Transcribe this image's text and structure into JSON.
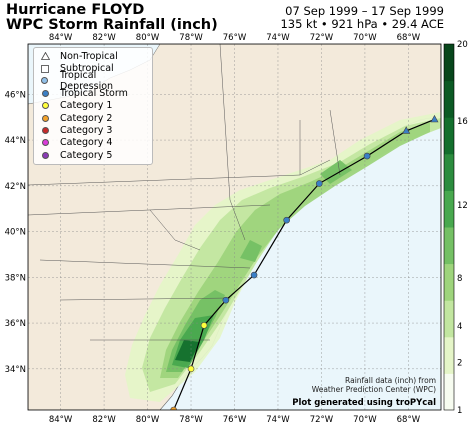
{
  "title": {
    "line1": "Hurricane FLOYD",
    "line2": "WPC Storm Rainfall (inch)"
  },
  "dates": {
    "range": "07 Sep 1999 – 17 Sep 1999",
    "stats": "135 kt • 921 hPa • 29.4 ACE"
  },
  "legend": [
    {
      "label": "Non-Tropical",
      "symbol": "triangle",
      "color": "#ffffff"
    },
    {
      "label": "Subtropical",
      "symbol": "square",
      "color": "#ffffff"
    },
    {
      "label": "Tropical Depression",
      "symbol": "circle",
      "color": "#8fbfe8"
    },
    {
      "label": "Tropical Storm",
      "symbol": "circle",
      "color": "#3a7fc6"
    },
    {
      "label": "Category 1",
      "symbol": "circle",
      "color": "#ffff3c"
    },
    {
      "label": "Category 2",
      "symbol": "circle",
      "color": "#f3a22a"
    },
    {
      "label": "Category 3",
      "symbol": "circle",
      "color": "#c62a2a"
    },
    {
      "label": "Category 4",
      "symbol": "circle",
      "color": "#d93bd9"
    },
    {
      "label": "Category 5",
      "symbol": "circle",
      "color": "#8a3bb5"
    }
  ],
  "axes": {
    "lon_ticks": [
      "84°W",
      "82°W",
      "80°W",
      "78°W",
      "76°W",
      "74°W",
      "72°W",
      "70°W",
      "68°W"
    ],
    "lat_ticks": [
      "46°N",
      "44°N",
      "42°N",
      "40°N",
      "38°N",
      "36°N",
      "34°N"
    ],
    "lon_range": [
      -85.5,
      -66.5
    ],
    "lat_range": [
      32.2,
      48.2
    ]
  },
  "colorbar": {
    "ticks": [
      "1",
      "2",
      "4",
      "8",
      "12",
      "16",
      "20"
    ],
    "colors": [
      "#f7fcf0",
      "#e5f5c8",
      "#c2e6a0",
      "#9ed47c",
      "#74c064",
      "#48a84e",
      "#2b8c3e",
      "#136f2d",
      "#0b5a24",
      "#07461b"
    ]
  },
  "track": [
    {
      "lon": -78.8,
      "lat": 32.2,
      "cat": "Category 2"
    },
    {
      "lon": -78.0,
      "lat": 34.0,
      "cat": "Category 1"
    },
    {
      "lon": -77.4,
      "lat": 35.9,
      "cat": "Category 1"
    },
    {
      "lon": -76.4,
      "lat": 37.0,
      "cat": "Tropical Storm"
    },
    {
      "lon": -75.1,
      "lat": 38.1,
      "cat": "Tropical Storm"
    },
    {
      "lon": -73.6,
      "lat": 40.5,
      "cat": "Tropical Storm"
    },
    {
      "lon": -72.1,
      "lat": 42.1,
      "cat": "Tropical Storm"
    },
    {
      "lon": -69.9,
      "lat": 43.3,
      "cat": "Tropical Storm"
    },
    {
      "lon": -68.1,
      "lat": 44.4,
      "cat": "Non-Tropical"
    },
    {
      "lon": -66.8,
      "lat": 44.9,
      "cat": "Non-Tropical"
    }
  ],
  "credit": {
    "line1": "Rainfall data (inch) from",
    "line2": "Weather Prediction Center (WPC)",
    "line3": "Plot generated using troPYcal"
  }
}
